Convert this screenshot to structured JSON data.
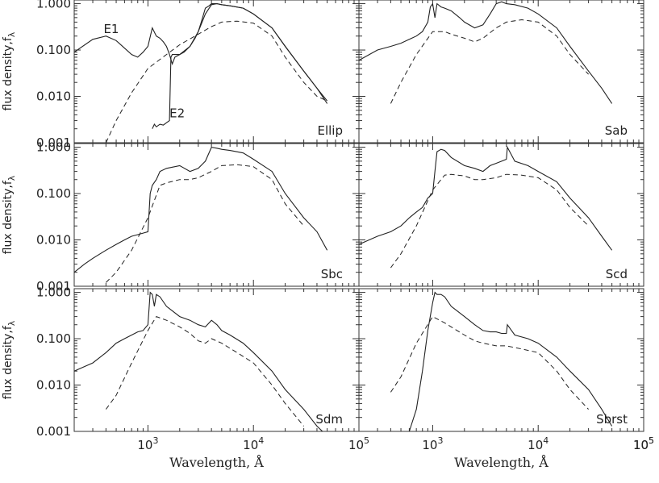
{
  "chart_data": {
    "type": "line",
    "xscale": "log",
    "yscale": "log",
    "xlim": [
      200,
      100000
    ],
    "ylim": [
      0.001,
      1.2
    ],
    "grid": false,
    "ytick_labels": [
      "1.000",
      "0.100",
      "0.010",
      "0.001"
    ],
    "ytick_values": [
      1,
      0.1,
      0.01,
      0.001
    ],
    "xtick_values": [
      1000,
      10000,
      100000
    ],
    "xtick_labels": [
      {
        "base": "10",
        "exp": "3"
      },
      {
        "base": "10",
        "exp": "4"
      },
      {
        "base": "10",
        "exp": "5"
      }
    ],
    "ylabel": "flux density,f",
    "ylabel_sub": "λ",
    "xlabel": "Wavelength, Å",
    "panels": [
      {
        "name": "Ellip",
        "series": [
          {
            "style": "solid",
            "x": [
              200,
              300,
              400,
              500,
              600,
              700,
              800,
              900,
              1000,
              1100,
              1200,
              1300,
              1400,
              1500,
              1600,
              1700,
              1800,
              2000,
              2200,
              2500,
              2800,
              3000,
              3200,
              3500,
              3800,
              4000,
              4500,
              5000,
              6000,
              8000,
              10000,
              15000,
              20000,
              30000,
              40000,
              50000
            ],
            "y": [
              0.09,
              0.17,
              0.2,
              0.16,
              0.11,
              0.08,
              0.07,
              0.09,
              0.12,
              0.3,
              0.2,
              0.18,
              0.15,
              0.12,
              0.08,
              0.05,
              0.07,
              0.08,
              0.09,
              0.12,
              0.18,
              0.25,
              0.4,
              0.8,
              0.9,
              1.0,
              1.0,
              0.95,
              0.9,
              0.8,
              0.6,
              0.3,
              0.12,
              0.035,
              0.015,
              0.008
            ]
          },
          {
            "style": "solid",
            "x": [
              1100,
              1150,
              1200,
              1300,
              1400,
              1500,
              1600,
              1650,
              1700,
              2000,
              2500,
              3000,
              3500,
              4000,
              4500,
              5000,
              6000,
              8000,
              10000,
              15000,
              20000,
              30000,
              40000,
              50000
            ],
            "y": [
              0.002,
              0.0025,
              0.0022,
              0.0025,
              0.0024,
              0.0027,
              0.003,
              0.07,
              0.08,
              0.08,
              0.12,
              0.25,
              0.6,
              0.95,
              1.0,
              0.95,
              0.9,
              0.8,
              0.6,
              0.3,
              0.12,
              0.035,
              0.015,
              0.007
            ]
          },
          {
            "style": "dashed",
            "x": [
              400,
              500,
              700,
              1000,
              1500,
              2000,
              3000,
              4000,
              5000,
              7000,
              10000,
              15000,
              20000,
              30000,
              40000,
              50000
            ],
            "y": [
              0.001,
              0.003,
              0.012,
              0.04,
              0.08,
              0.13,
              0.22,
              0.32,
              0.4,
              0.42,
              0.38,
              0.2,
              0.07,
              0.02,
              0.01,
              0.008
            ]
          }
        ],
        "annotations": [
          {
            "text": "E1",
            "x": 380,
            "y": 0.23
          },
          {
            "text": "E2",
            "x": 1600,
            "y": 0.0035
          }
        ]
      },
      {
        "name": "Sab",
        "series": [
          {
            "style": "solid",
            "x": [
              200,
              300,
              400,
              500,
              600,
              700,
              800,
              900,
              950,
              1000,
              1050,
              1100,
              1200,
              1300,
              1500,
              1800,
              2000,
              2500,
              3000,
              3500,
              4000,
              4500,
              5000,
              6000,
              8000,
              10000,
              15000,
              20000,
              30000,
              40000,
              50000
            ],
            "y": [
              0.06,
              0.1,
              0.12,
              0.14,
              0.17,
              0.2,
              0.25,
              0.4,
              0.85,
              1.0,
              0.5,
              1.0,
              0.85,
              0.8,
              0.7,
              0.5,
              0.4,
              0.3,
              0.35,
              0.6,
              1.0,
              1.1,
              1.0,
              0.95,
              0.8,
              0.6,
              0.3,
              0.12,
              0.035,
              0.015,
              0.007
            ]
          },
          {
            "style": "dashed",
            "x": [
              400,
              500,
              700,
              1000,
              1300,
              1500,
              2000,
              2500,
              3000,
              4000,
              5000,
              7000,
              10000,
              15000,
              20000,
              30000
            ],
            "y": [
              0.007,
              0.02,
              0.08,
              0.25,
              0.25,
              0.22,
              0.18,
              0.15,
              0.18,
              0.3,
              0.4,
              0.45,
              0.4,
              0.2,
              0.08,
              0.03
            ]
          }
        ],
        "annotations": []
      },
      {
        "name": "Sbc",
        "series": [
          {
            "style": "solid",
            "x": [
              200,
              250,
              300,
              400,
              500,
              600,
              700,
              800,
              900,
              1000,
              1050,
              1100,
              1200,
              1300,
              1500,
              2000,
              2500,
              3000,
              3500,
              4000,
              4500,
              5000,
              6000,
              8000,
              10000,
              15000,
              20000,
              30000,
              40000,
              50000
            ],
            "y": [
              0.002,
              0.003,
              0.004,
              0.006,
              0.008,
              0.01,
              0.012,
              0.013,
              0.014,
              0.015,
              0.1,
              0.15,
              0.2,
              0.3,
              0.35,
              0.4,
              0.3,
              0.35,
              0.5,
              1.0,
              0.95,
              0.9,
              0.85,
              0.75,
              0.55,
              0.3,
              0.1,
              0.03,
              0.015,
              0.006
            ]
          },
          {
            "style": "dashed",
            "x": [
              400,
              500,
              700,
              1000,
              1300,
              1500,
              2000,
              2500,
              3000,
              4000,
              5000,
              7000,
              10000,
              15000,
              20000,
              30000
            ],
            "y": [
              0.0012,
              0.002,
              0.006,
              0.03,
              0.15,
              0.17,
              0.2,
              0.2,
              0.22,
              0.3,
              0.4,
              0.42,
              0.38,
              0.2,
              0.06,
              0.02
            ]
          }
        ],
        "annotations": []
      },
      {
        "name": "Scd",
        "series": [
          {
            "style": "solid",
            "x": [
              200,
              250,
              300,
              400,
              500,
              600,
              700,
              800,
              900,
              1000,
              1050,
              1100,
              1200,
              1300,
              1500,
              2000,
              2500,
              3000,
              3500,
              4000,
              4500,
              5000,
              5100,
              6000,
              8000,
              10000,
              15000,
              20000,
              30000,
              40000,
              50000
            ],
            "y": [
              0.008,
              0.01,
              0.012,
              0.015,
              0.02,
              0.03,
              0.04,
              0.05,
              0.08,
              0.1,
              0.3,
              0.8,
              0.9,
              0.85,
              0.6,
              0.4,
              0.35,
              0.3,
              0.4,
              0.45,
              0.5,
              0.55,
              1.0,
              0.5,
              0.4,
              0.3,
              0.18,
              0.08,
              0.03,
              0.012,
              0.006
            ]
          },
          {
            "style": "dashed",
            "x": [
              400,
              500,
              700,
              1000,
              1300,
              1500,
              2000,
              2500,
              3000,
              4000,
              5000,
              7000,
              10000,
              15000,
              20000,
              30000
            ],
            "y": [
              0.0025,
              0.005,
              0.02,
              0.12,
              0.25,
              0.26,
              0.24,
              0.2,
              0.2,
              0.22,
              0.26,
              0.25,
              0.22,
              0.12,
              0.05,
              0.02
            ]
          }
        ],
        "annotations": []
      },
      {
        "name": "Sdm",
        "series": [
          {
            "style": "solid",
            "x": [
              200,
              250,
              300,
              400,
              500,
              600,
              700,
              800,
              900,
              1000,
              1050,
              1100,
              1150,
              1200,
              1300,
              1500,
              2000,
              2500,
              3000,
              3500,
              4000,
              4500,
              5000,
              6000,
              8000,
              10000,
              15000,
              20000,
              30000,
              40000,
              50000
            ],
            "y": [
              0.02,
              0.025,
              0.03,
              0.05,
              0.08,
              0.1,
              0.12,
              0.14,
              0.15,
              0.2,
              1.0,
              0.9,
              0.5,
              0.9,
              0.8,
              0.5,
              0.3,
              0.25,
              0.2,
              0.18,
              0.25,
              0.2,
              0.15,
              0.12,
              0.08,
              0.05,
              0.02,
              0.008,
              0.003,
              0.0013,
              0.0008
            ]
          },
          {
            "style": "dashed",
            "x": [
              400,
              500,
              700,
              1000,
              1200,
              1500,
              2000,
              2500,
              3000,
              3500,
              4000,
              5000,
              7000,
              10000,
              15000,
              20000,
              30000
            ],
            "y": [
              0.003,
              0.006,
              0.03,
              0.15,
              0.3,
              0.25,
              0.18,
              0.13,
              0.09,
              0.08,
              0.1,
              0.08,
              0.05,
              0.03,
              0.01,
              0.004,
              0.0013
            ]
          }
        ],
        "annotations": []
      },
      {
        "name": "Sbrst",
        "series": [
          {
            "style": "solid",
            "x": [
              550,
              600,
              700,
              800,
              900,
              1000,
              1050,
              1100,
              1200,
              1300,
              1500,
              2000,
              2500,
              3000,
              3500,
              4000,
              4500,
              5000,
              5100,
              6000,
              8000,
              10000,
              15000,
              20000,
              30000,
              40000,
              50000
            ],
            "y": [
              0.0008,
              0.001,
              0.003,
              0.02,
              0.15,
              0.6,
              1.0,
              0.9,
              0.9,
              0.8,
              0.5,
              0.3,
              0.2,
              0.15,
              0.14,
              0.14,
              0.13,
              0.13,
              0.2,
              0.12,
              0.1,
              0.08,
              0.04,
              0.02,
              0.008,
              0.003,
              0.0013
            ]
          },
          {
            "style": "dashed",
            "x": [
              400,
              500,
              700,
              1000,
              1300,
              1500,
              2000,
              2500,
              3000,
              4000,
              5000,
              7000,
              10000,
              15000,
              20000,
              30000
            ],
            "y": [
              0.007,
              0.015,
              0.08,
              0.3,
              0.22,
              0.18,
              0.12,
              0.09,
              0.08,
              0.07,
              0.07,
              0.06,
              0.05,
              0.02,
              0.008,
              0.003
            ]
          }
        ],
        "annotations": []
      }
    ]
  }
}
